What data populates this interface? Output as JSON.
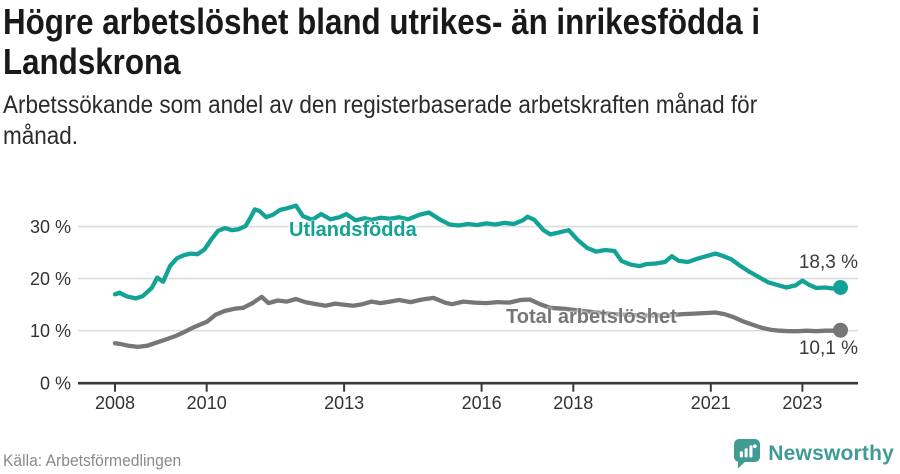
{
  "header": {
    "title_line1": "Högre arbetslöshet bland utrikes- än inrikesfödda i",
    "title_line2": "Landskrona",
    "subtitle_line1": "Arbetssökande som andel av den registerbaserade arbetskraften månad för",
    "subtitle_line2": "månad."
  },
  "footer": {
    "source": "Källa: Arbetsförmedlingen",
    "brand": "Newsworthy",
    "brand_color": "#3f9b94",
    "brand_icon": "newsworthy-logo-icon"
  },
  "colors": {
    "accent_teal": "#12a296",
    "series_gray": "#767676",
    "gridline": "#dcdcdc",
    "axis": "#3a3a3a",
    "tick_text": "#333333"
  },
  "chart_data": {
    "type": "line",
    "title": "Högre arbetslöshet bland utrikes- än inrikesfödda i Landskrona",
    "subtitle": "Arbetssökande som andel av den registerbaserade arbetskraften månad för månad.",
    "xlabel": "",
    "ylabel": "",
    "grid": "horizontal",
    "x_axis": {
      "range": [
        2008,
        2023.9
      ],
      "tick_years": [
        2008,
        2010,
        2013,
        2016,
        2018,
        2021,
        2023
      ],
      "labels": [
        "2008",
        "2010",
        "2013",
        "2016",
        "2018",
        "2021",
        "2023"
      ]
    },
    "y_axis": {
      "range": [
        0,
        35
      ],
      "ticks": [
        0,
        10,
        20,
        30
      ],
      "labels": [
        "0 %",
        "10 %",
        "20 %",
        "30 %"
      ]
    },
    "legend_position": "inline-labels",
    "series": [
      {
        "name": "Utlandsfödda",
        "color": "#12a296",
        "end_label": "18,3 %",
        "end_value": 18.3,
        "points": [
          [
            2008.0,
            17.0
          ],
          [
            2008.1,
            17.3
          ],
          [
            2008.25,
            16.6
          ],
          [
            2008.45,
            16.2
          ],
          [
            2008.6,
            16.6
          ],
          [
            2008.8,
            18.2
          ],
          [
            2008.92,
            20.2
          ],
          [
            2009.05,
            19.4
          ],
          [
            2009.2,
            22.4
          ],
          [
            2009.35,
            23.9
          ],
          [
            2009.5,
            24.5
          ],
          [
            2009.65,
            24.8
          ],
          [
            2009.8,
            24.7
          ],
          [
            2009.95,
            25.6
          ],
          [
            2010.1,
            27.5
          ],
          [
            2010.25,
            29.2
          ],
          [
            2010.4,
            29.7
          ],
          [
            2010.55,
            29.3
          ],
          [
            2010.7,
            29.5
          ],
          [
            2010.85,
            30.1
          ],
          [
            2010.95,
            31.6
          ],
          [
            2011.05,
            33.3
          ],
          [
            2011.15,
            33.0
          ],
          [
            2011.3,
            31.8
          ],
          [
            2011.45,
            32.3
          ],
          [
            2011.6,
            33.2
          ],
          [
            2011.75,
            33.5
          ],
          [
            2011.95,
            34.0
          ],
          [
            2012.1,
            32.0
          ],
          [
            2012.3,
            31.3
          ],
          [
            2012.5,
            32.4
          ],
          [
            2012.7,
            31.4
          ],
          [
            2012.9,
            31.8
          ],
          [
            2013.05,
            32.4
          ],
          [
            2013.25,
            31.2
          ],
          [
            2013.45,
            31.6
          ],
          [
            2013.6,
            31.3
          ],
          [
            2013.8,
            31.7
          ],
          [
            2014.0,
            31.5
          ],
          [
            2014.2,
            31.8
          ],
          [
            2014.4,
            31.4
          ],
          [
            2014.65,
            32.3
          ],
          [
            2014.85,
            32.7
          ],
          [
            2015.1,
            31.3
          ],
          [
            2015.3,
            30.4
          ],
          [
            2015.5,
            30.2
          ],
          [
            2015.7,
            30.5
          ],
          [
            2015.9,
            30.3
          ],
          [
            2016.1,
            30.6
          ],
          [
            2016.3,
            30.4
          ],
          [
            2016.5,
            30.7
          ],
          [
            2016.7,
            30.5
          ],
          [
            2016.9,
            31.2
          ],
          [
            2017.0,
            31.9
          ],
          [
            2017.15,
            31.3
          ],
          [
            2017.35,
            29.3
          ],
          [
            2017.5,
            28.5
          ],
          [
            2017.7,
            28.9
          ],
          [
            2017.9,
            29.3
          ],
          [
            2018.1,
            27.4
          ],
          [
            2018.3,
            25.9
          ],
          [
            2018.5,
            25.2
          ],
          [
            2018.7,
            25.5
          ],
          [
            2018.9,
            25.3
          ],
          [
            2019.05,
            23.4
          ],
          [
            2019.25,
            22.7
          ],
          [
            2019.45,
            22.4
          ],
          [
            2019.6,
            22.8
          ],
          [
            2019.8,
            22.9
          ],
          [
            2020.0,
            23.2
          ],
          [
            2020.15,
            24.3
          ],
          [
            2020.3,
            23.4
          ],
          [
            2020.5,
            23.2
          ],
          [
            2020.7,
            23.8
          ],
          [
            2020.9,
            24.3
          ],
          [
            2021.1,
            24.8
          ],
          [
            2021.25,
            24.4
          ],
          [
            2021.45,
            23.7
          ],
          [
            2021.65,
            22.4
          ],
          [
            2021.85,
            21.3
          ],
          [
            2022.05,
            20.3
          ],
          [
            2022.25,
            19.3
          ],
          [
            2022.45,
            18.8
          ],
          [
            2022.65,
            18.3
          ],
          [
            2022.85,
            18.7
          ],
          [
            2023.0,
            19.6
          ],
          [
            2023.15,
            18.8
          ],
          [
            2023.3,
            18.2
          ],
          [
            2023.5,
            18.3
          ],
          [
            2023.65,
            18.1
          ],
          [
            2023.83,
            18.3
          ]
        ]
      },
      {
        "name": "Total arbetslöshet",
        "color": "#767676",
        "end_label": "10,1 %",
        "end_value": 10.1,
        "points": [
          [
            2008.0,
            7.6
          ],
          [
            2008.15,
            7.4
          ],
          [
            2008.3,
            7.1
          ],
          [
            2008.5,
            6.9
          ],
          [
            2008.7,
            7.1
          ],
          [
            2008.9,
            7.7
          ],
          [
            2009.1,
            8.3
          ],
          [
            2009.3,
            8.9
          ],
          [
            2009.5,
            9.7
          ],
          [
            2009.75,
            10.8
          ],
          [
            2010.0,
            11.7
          ],
          [
            2010.2,
            13.1
          ],
          [
            2010.4,
            13.8
          ],
          [
            2010.6,
            14.2
          ],
          [
            2010.8,
            14.4
          ],
          [
            2011.0,
            15.3
          ],
          [
            2011.2,
            16.5
          ],
          [
            2011.35,
            15.3
          ],
          [
            2011.55,
            15.8
          ],
          [
            2011.75,
            15.6
          ],
          [
            2011.95,
            16.1
          ],
          [
            2012.15,
            15.5
          ],
          [
            2012.4,
            15.1
          ],
          [
            2012.6,
            14.8
          ],
          [
            2012.8,
            15.2
          ],
          [
            2013.0,
            15.0
          ],
          [
            2013.2,
            14.8
          ],
          [
            2013.4,
            15.1
          ],
          [
            2013.6,
            15.6
          ],
          [
            2013.8,
            15.3
          ],
          [
            2014.0,
            15.6
          ],
          [
            2014.2,
            15.9
          ],
          [
            2014.45,
            15.5
          ],
          [
            2014.7,
            16.0
          ],
          [
            2014.95,
            16.3
          ],
          [
            2015.2,
            15.4
          ],
          [
            2015.35,
            15.1
          ],
          [
            2015.6,
            15.6
          ],
          [
            2015.85,
            15.4
          ],
          [
            2016.1,
            15.3
          ],
          [
            2016.35,
            15.5
          ],
          [
            2016.6,
            15.4
          ],
          [
            2016.85,
            15.9
          ],
          [
            2017.05,
            16.0
          ],
          [
            2017.3,
            15.0
          ],
          [
            2017.5,
            14.4
          ],
          [
            2017.8,
            14.2
          ],
          [
            2018.1,
            13.9
          ],
          [
            2018.5,
            13.5
          ],
          [
            2018.9,
            13.2
          ],
          [
            2019.3,
            13.0
          ],
          [
            2019.7,
            12.9
          ],
          [
            2020.1,
            13.0
          ],
          [
            2020.4,
            13.2
          ],
          [
            2020.7,
            13.3
          ],
          [
            2020.9,
            13.4
          ],
          [
            2021.1,
            13.5
          ],
          [
            2021.3,
            13.2
          ],
          [
            2021.5,
            12.6
          ],
          [
            2021.7,
            11.8
          ],
          [
            2021.9,
            11.2
          ],
          [
            2022.1,
            10.6
          ],
          [
            2022.3,
            10.2
          ],
          [
            2022.5,
            10.0
          ],
          [
            2022.7,
            9.9
          ],
          [
            2022.9,
            9.9
          ],
          [
            2023.1,
            10.0
          ],
          [
            2023.3,
            9.9
          ],
          [
            2023.5,
            10.0
          ],
          [
            2023.65,
            10.0
          ],
          [
            2023.83,
            10.1
          ]
        ]
      }
    ]
  }
}
